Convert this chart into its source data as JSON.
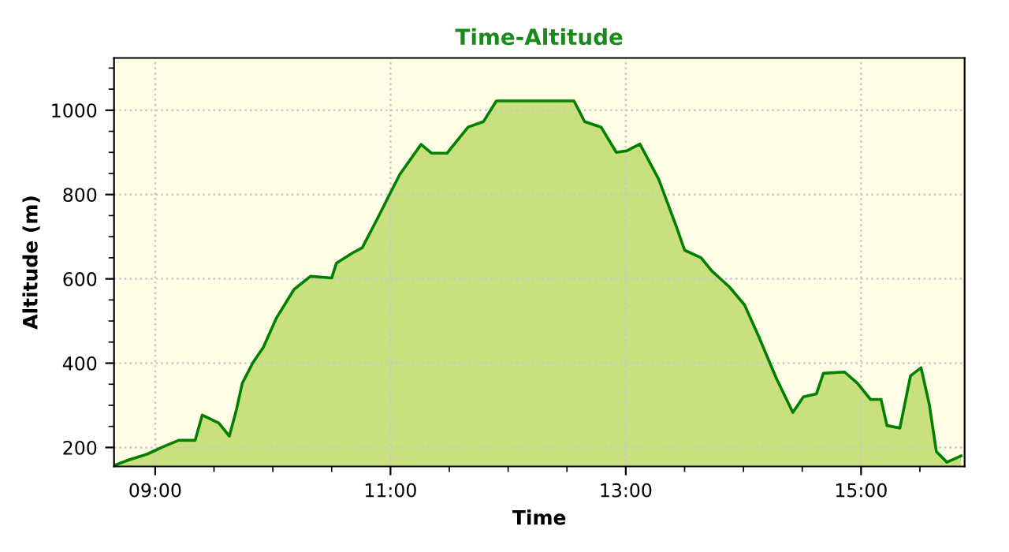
{
  "chart_data": {
    "type": "area",
    "title": "Time-Altitude",
    "xlabel": "Time",
    "ylabel": "Altitude (m)",
    "x": [
      8.665,
      8.78,
      8.93,
      9.07,
      9.2,
      9.34,
      9.4,
      9.54,
      9.63,
      9.69,
      9.74,
      9.83,
      9.92,
      10.03,
      10.18,
      10.32,
      10.5,
      10.54,
      10.68,
      10.76,
      10.9,
      10.99,
      11.08,
      11.26,
      11.35,
      11.48,
      11.66,
      11.79,
      11.9,
      12.02,
      12.56,
      12.65,
      12.79,
      12.92,
      13.01,
      13.12,
      13.28,
      13.43,
      13.5,
      13.64,
      13.73,
      13.88,
      14.01,
      14.13,
      14.28,
      14.42,
      14.51,
      14.62,
      14.68,
      14.86,
      14.97,
      15.08,
      15.17,
      15.22,
      15.33,
      15.42,
      15.51,
      15.58,
      15.64,
      15.73,
      15.85
    ],
    "series": [
      {
        "color": "#008000",
        "values": [
          159,
          171,
          184,
          202,
          217,
          217,
          277,
          258,
          227,
          289,
          352,
          401,
          438,
          507,
          575,
          606,
          602,
          637,
          662,
          674,
          749,
          799,
          848,
          919,
          898,
          898,
          960,
          973,
          1022,
          1022,
          1022,
          973,
          960,
          900,
          904,
          920,
          836,
          724,
          668,
          650,
          619,
          581,
          538,
          463,
          364,
          283,
          320,
          327,
          376,
          379,
          352,
          314,
          314,
          252,
          246,
          370,
          389,
          302,
          190,
          165,
          180
        ]
      }
    ],
    "xlim": [
      8.65,
      15.88
    ],
    "ylim": [
      155,
      1124
    ],
    "xticks": [
      {
        "value": 9,
        "label": "09:00"
      },
      {
        "value": 9.5,
        "label": null
      },
      {
        "value": 10,
        "label": null
      },
      {
        "value": 10.5,
        "label": null
      },
      {
        "value": 11,
        "label": "11:00"
      },
      {
        "value": 11.5,
        "label": null
      },
      {
        "value": 12,
        "label": null
      },
      {
        "value": 12.5,
        "label": null
      },
      {
        "value": 13,
        "label": "13:00"
      },
      {
        "value": 13.5,
        "label": null
      },
      {
        "value": 14,
        "label": null
      },
      {
        "value": 14.5,
        "label": null
      },
      {
        "value": 15,
        "label": "15:00"
      },
      {
        "value": 15.5,
        "label": null
      }
    ],
    "yticks": [
      200,
      {
        "value": 250,
        "label": null
      },
      {
        "value": 300,
        "label": null
      },
      {
        "value": 350,
        "label": null
      },
      400,
      {
        "value": 450,
        "label": null
      },
      {
        "value": 500,
        "label": null
      },
      {
        "value": 550,
        "label": null
      },
      600,
      {
        "value": 650,
        "label": null
      },
      {
        "value": 700,
        "label": null
      },
      {
        "value": 750,
        "label": null
      },
      800,
      {
        "value": 850,
        "label": null
      },
      {
        "value": 900,
        "label": null
      },
      {
        "value": 950,
        "label": null
      },
      1000,
      {
        "value": 1050,
        "label": null
      },
      {
        "value": 1100,
        "label": null
      }
    ],
    "grid": true,
    "line_style": "solid",
    "marker": "none"
  }
}
